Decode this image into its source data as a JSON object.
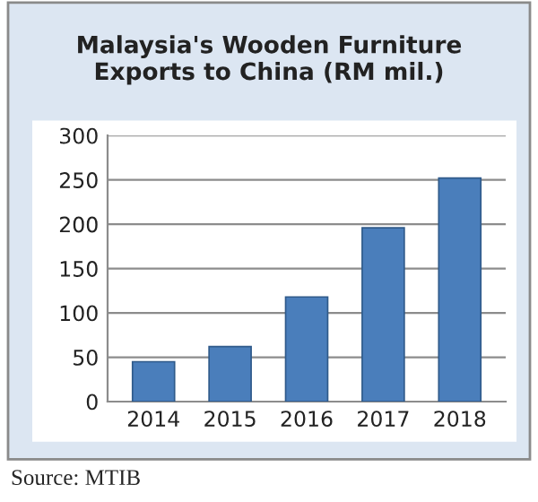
{
  "chart_data": {
    "type": "bar",
    "title": "Malaysia's Wooden Furniture\nExports to China (RM mil.)",
    "categories": [
      "2014",
      "2015",
      "2016",
      "2017",
      "2018"
    ],
    "values": [
      45,
      62,
      118,
      196,
      252
    ],
    "color": "#4a7ebb",
    "ylim": [
      0,
      300
    ],
    "yticks": [
      0,
      50,
      100,
      150,
      200,
      250,
      300
    ],
    "grid": "y",
    "annotations": [
      "Source: MTIB"
    ]
  }
}
